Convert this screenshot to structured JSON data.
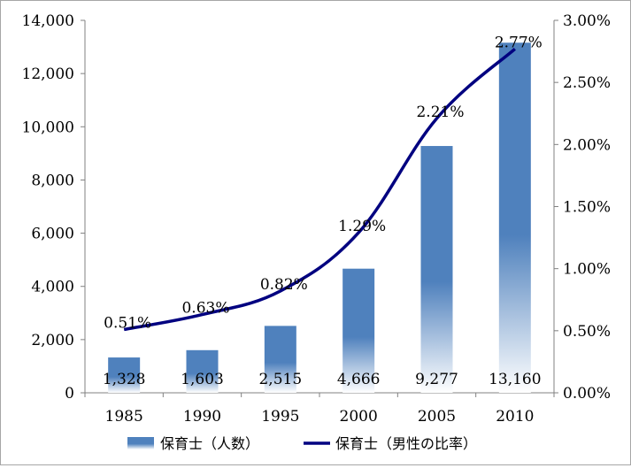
{
  "chart_data": {
    "type": "bar",
    "categories": [
      "1985",
      "1990",
      "1995",
      "2000",
      "2005",
      "2010"
    ],
    "series": [
      {
        "name": "保育士（人数）",
        "type": "bar",
        "axis": "left",
        "values": [
          1328,
          1603,
          2515,
          4666,
          9277,
          13160
        ],
        "labels": [
          "1,328",
          "1,603",
          "2,515",
          "4,666",
          "9,277",
          "13,160"
        ],
        "color": "#4f81bd"
      },
      {
        "name": "保育士（男性の比率）",
        "type": "line",
        "axis": "right",
        "values": [
          0.51,
          0.63,
          0.82,
          1.29,
          2.21,
          2.77
        ],
        "labels": [
          "0.51%",
          "0.63%",
          "0.82%",
          "1.29%",
          "2.21%",
          "2.77%"
        ],
        "color": "#000080"
      }
    ],
    "y_left": {
      "min": 0,
      "max": 14000,
      "step": 2000,
      "ticks": [
        "0",
        "2,000",
        "4,000",
        "6,000",
        "8,000",
        "10,000",
        "12,000",
        "14,000"
      ]
    },
    "y_right": {
      "min": 0,
      "max": 3.0,
      "step": 0.5,
      "ticks": [
        "0.00%",
        "0.50%",
        "1.00%",
        "1.50%",
        "2.00%",
        "2.50%",
        "3.00%"
      ]
    },
    "legend_position": "bottom",
    "grid": false
  }
}
